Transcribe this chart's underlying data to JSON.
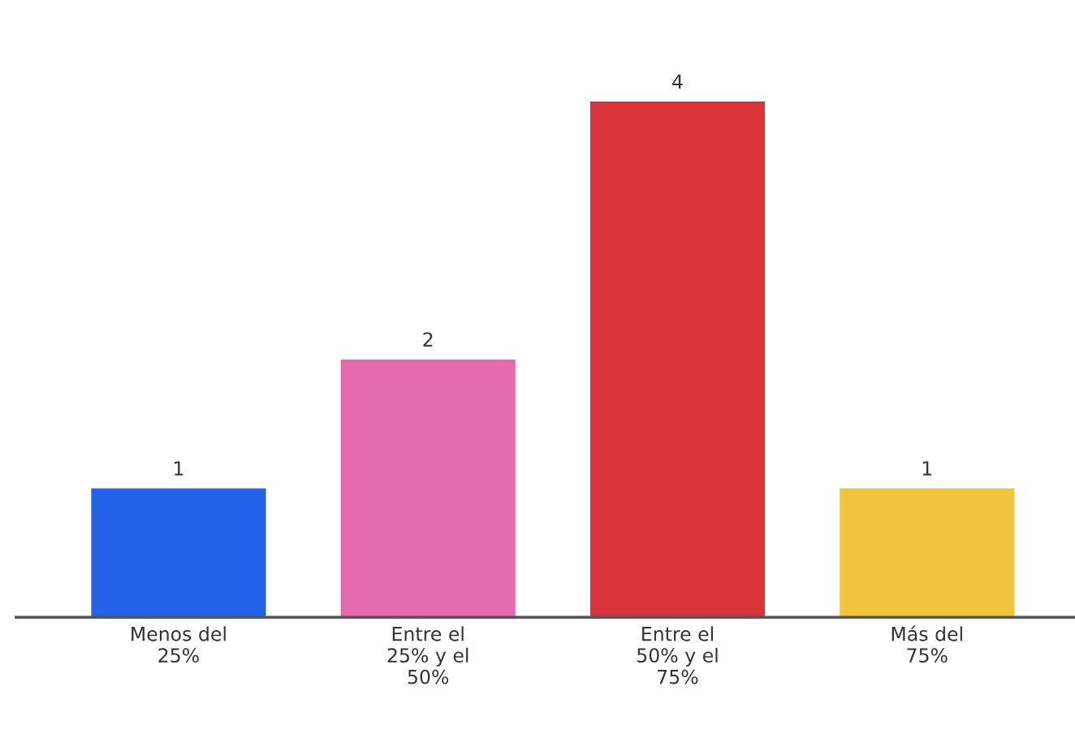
{
  "chart_data": {
    "type": "bar",
    "categories": [
      "Menos del\n25%",
      "Entre el\n25% y el\n50%",
      "Entre el\n50% y el\n75%",
      "Más del\n75%"
    ],
    "values": [
      1,
      2,
      4,
      1
    ],
    "colors": [
      "#2463e8",
      "#e46aae",
      "#d9343b",
      "#f0c43c"
    ],
    "data_labels": true,
    "tick_labels": "x",
    "grid": false,
    "legend": false
  }
}
